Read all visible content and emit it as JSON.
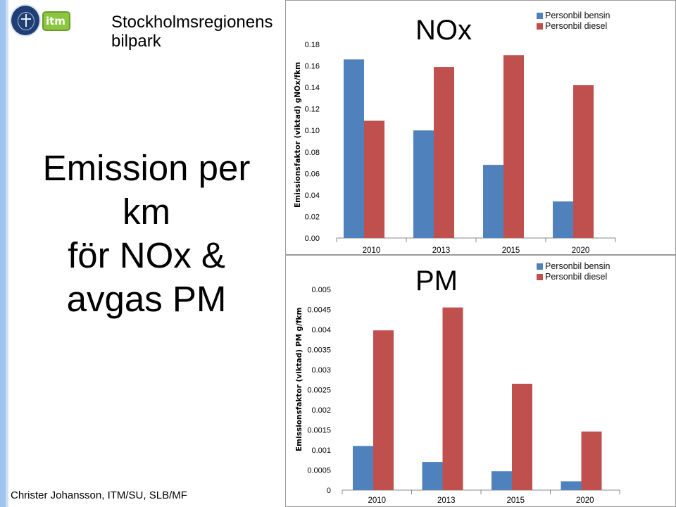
{
  "header": {
    "title": "Stockholmsregionens bilpark",
    "logo_text": "itm"
  },
  "headline": [
    "Emission per",
    "km",
    "för NOx &",
    "avgas PM"
  ],
  "footer": "Christer Johansson, ITM/SU, SLB/MF",
  "chart_data": [
    {
      "type": "bar",
      "title": "NOx",
      "ylabel": "Emissionsfaktor  (viktad) gNOx/fkm",
      "categories": [
        "2010",
        "2013",
        "2015",
        "2020"
      ],
      "series": [
        {
          "name": "Personbil bensin",
          "color": "#4f81bd",
          "values": [
            0.166,
            0.1,
            0.068,
            0.034
          ]
        },
        {
          "name": "Personbil diesel",
          "color": "#c0504d",
          "values": [
            0.109,
            0.159,
            0.17,
            0.142
          ]
        }
      ],
      "yticks": [
        "0.00",
        "0.02",
        "0.04",
        "0.06",
        "0.08",
        "0.10",
        "0.12",
        "0.14",
        "0.16",
        "0.18"
      ],
      "ylim": [
        0,
        0.18
      ],
      "legend": "top-right",
      "grid": false
    },
    {
      "type": "bar",
      "title": "PM",
      "ylabel": "Emissionsfaktor  (viktad) PM g/fkm",
      "categories": [
        "2010",
        "2013",
        "2015",
        "2020"
      ],
      "series": [
        {
          "name": "Personbil bensin",
          "color": "#4f81bd",
          "values": [
            0.0011,
            0.0007,
            0.00047,
            0.00022
          ]
        },
        {
          "name": "Personbil diesel",
          "color": "#c0504d",
          "values": [
            0.00398,
            0.00455,
            0.00265,
            0.00146
          ]
        }
      ],
      "yticks": [
        "0",
        "0.0005",
        "0.001",
        "0.0015",
        "0.002",
        "0.0025",
        "0.003",
        "0.0035",
        "0.004",
        "0.0045",
        "0.005"
      ],
      "ylim": [
        0,
        0.005
      ],
      "legend": "top-right",
      "grid": false
    }
  ]
}
